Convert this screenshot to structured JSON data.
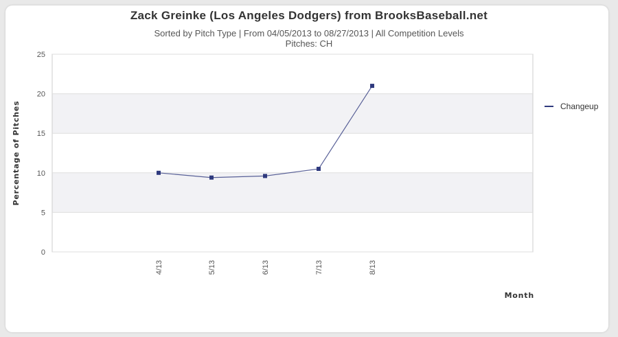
{
  "chart_data": {
    "type": "line",
    "title": "Zack Greinke (Los Angeles Dodgers) from BrooksBaseball.net",
    "subtitle": "Sorted by Pitch Type | From 04/05/2013 to 08/27/2013 | All Competition Levels",
    "subtitle2": "Pitches:  CH",
    "xlabel": "Month",
    "ylabel": "Percentage of Pitches",
    "ylim": [
      0,
      25
    ],
    "yticks": [
      0,
      5,
      10,
      15,
      20,
      25
    ],
    "categories": [
      "4/13",
      "5/13",
      "6/13",
      "7/13",
      "8/13"
    ],
    "series": [
      {
        "name": "Changeup",
        "values": [
          10.0,
          9.4,
          9.6,
          10.5,
          21.0
        ],
        "color": "#2f3a7e"
      }
    ],
    "grid": true,
    "legend_position": "right"
  }
}
